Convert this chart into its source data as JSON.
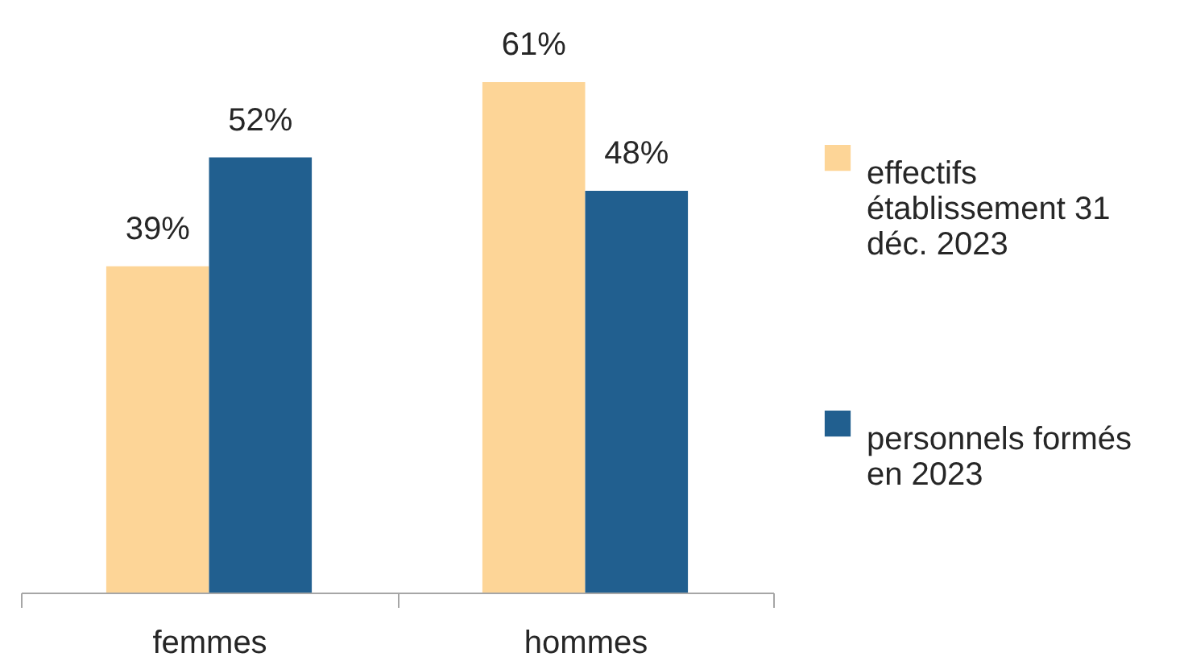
{
  "chart_data": {
    "type": "bar",
    "categories": [
      "femmes",
      "hommes"
    ],
    "series": [
      {
        "name": "effectifs établissement 31 déc. 2023",
        "color": "#fdd597",
        "values": [
          39,
          61
        ],
        "value_labels": [
          "39%",
          "61%"
        ]
      },
      {
        "name": "personnels formés en 2023",
        "color": "#215f8f",
        "values": [
          52,
          48
        ],
        "value_labels": [
          "52%",
          "48%"
        ]
      }
    ],
    "legend": "right",
    "tick_labels": "x"
  }
}
